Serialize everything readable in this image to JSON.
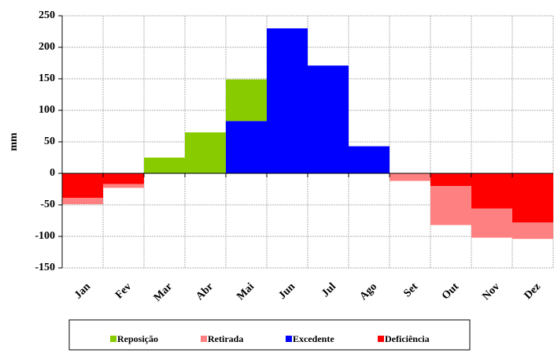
{
  "chart_data": {
    "type": "bar",
    "stacked": true,
    "y_label": "mm",
    "categories": [
      "Jan",
      "Fev",
      "Mar",
      "Abr",
      "Mai",
      "Jun",
      "Jul",
      "Ago",
      "Set",
      "Out",
      "Nov",
      "Dez"
    ],
    "series": [
      {
        "name": "Reposição",
        "color": "#88cc00",
        "values": [
          0,
          0,
          25,
          65,
          66,
          0,
          0,
          0,
          0,
          0,
          0,
          0
        ]
      },
      {
        "name": "Retirada",
        "color": "#ff8080",
        "values": [
          -10,
          -6,
          0,
          0,
          0,
          0,
          0,
          0,
          -12,
          -62,
          -46,
          -26
        ]
      },
      {
        "name": "Excedente",
        "color": "#0000ff",
        "values": [
          0,
          0,
          0,
          0,
          83,
          230,
          171,
          43,
          0,
          0,
          0,
          0
        ]
      },
      {
        "name": "Deficiência",
        "color": "#ff0000",
        "values": [
          -39,
          -17,
          0,
          0,
          0,
          0,
          0,
          0,
          0,
          -20,
          -56,
          -78
        ]
      }
    ],
    "ylim": [
      -150,
      250
    ],
    "yticks": [
      -150,
      -100,
      -50,
      0,
      50,
      100,
      150,
      200,
      250
    ],
    "grid": true
  }
}
